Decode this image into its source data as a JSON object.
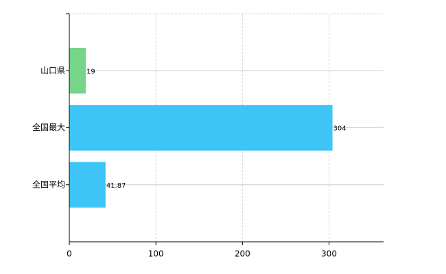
{
  "chart_data": {
    "type": "bar",
    "orientation": "horizontal",
    "categories": [
      "山口県",
      "全国最大",
      "全国平均"
    ],
    "values": [
      19,
      304,
      41.87
    ],
    "colors": [
      "#76d58a",
      "#3ec4f6",
      "#3ec4f6"
    ],
    "xlim": [
      0,
      363
    ],
    "xticks": [
      0,
      100,
      200,
      300
    ],
    "grid": true
  }
}
